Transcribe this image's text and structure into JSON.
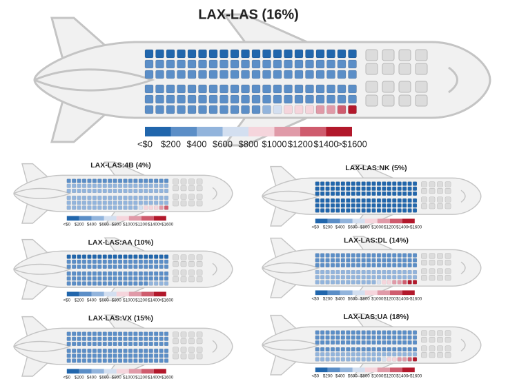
{
  "chart_data": {
    "type": "seatmap",
    "legend": {
      "colors": [
        "#2166ac",
        "#5b8ec7",
        "#92b4dc",
        "#d3dff0",
        "#f5d5dc",
        "#e09aa8",
        "#cf5c6e",
        "#b2182b"
      ],
      "ticks": [
        {
          "value": 0,
          "label": "<$0"
        },
        {
          "value": 200,
          "label": "$200"
        },
        {
          "value": 400,
          "label": "$400"
        },
        {
          "value": 600,
          "label": "$600"
        },
        {
          "value": 800,
          "label": "$800"
        },
        {
          "value": 1000,
          "label": "$1000"
        },
        {
          "value": 1200,
          "label": "$1200"
        },
        {
          "value": 1400,
          "label": "$1400"
        },
        {
          "value": 1600,
          "label": ">$1600"
        }
      ]
    },
    "planes": [
      {
        "title": "LAX-LAS (16%)",
        "seats": [
          [
            150,
            150,
            150,
            150,
            150,
            150,
            150,
            150,
            150,
            150,
            150,
            150,
            150,
            150,
            150,
            150,
            150,
            150,
            150,
            150
          ],
          [
            250,
            250,
            250,
            250,
            250,
            250,
            250,
            250,
            250,
            250,
            250,
            250,
            250,
            250,
            250,
            250,
            250,
            250,
            250,
            250
          ],
          [
            250,
            250,
            250,
            250,
            250,
            250,
            250,
            250,
            250,
            250,
            250,
            250,
            250,
            250,
            250,
            250,
            250,
            250,
            250,
            250
          ],
          [
            300,
            300,
            300,
            300,
            300,
            300,
            300,
            300,
            300,
            300,
            300,
            300,
            300,
            300,
            300,
            300,
            300,
            300,
            300,
            300
          ],
          [
            350,
            350,
            350,
            350,
            350,
            350,
            350,
            350,
            350,
            350,
            350,
            350,
            350,
            350,
            350,
            350,
            350,
            350,
            350,
            350
          ],
          [
            350,
            350,
            350,
            350,
            350,
            350,
            350,
            350,
            350,
            350,
            350,
            450,
            650,
            850,
            850,
            950,
            1050,
            1150,
            1300,
            1700
          ]
        ]
      },
      {
        "title": "LAX-LAS:4B (4%)",
        "seats": [
          [
            350,
            350,
            350,
            350,
            350,
            350,
            350,
            350,
            350,
            350,
            350,
            350,
            350,
            350,
            350,
            350,
            350,
            350,
            350,
            350
          ],
          [
            450,
            450,
            450,
            450,
            450,
            450,
            450,
            450,
            450,
            450,
            450,
            450,
            450,
            450,
            450,
            450,
            450,
            450,
            450,
            450
          ],
          [
            450,
            450,
            450,
            450,
            450,
            450,
            450,
            450,
            450,
            450,
            450,
            450,
            450,
            450,
            450,
            450,
            450,
            450,
            450,
            450
          ],
          [
            450,
            450,
            450,
            450,
            450,
            450,
            450,
            450,
            450,
            450,
            450,
            450,
            450,
            450,
            450,
            450,
            450,
            450,
            450,
            450
          ],
          [
            450,
            450,
            450,
            450,
            450,
            450,
            450,
            450,
            450,
            450,
            450,
            450,
            450,
            450,
            450,
            450,
            450,
            450,
            450,
            450
          ],
          [
            450,
            450,
            450,
            450,
            450,
            450,
            450,
            450,
            450,
            450,
            450,
            450,
            450,
            450,
            650,
            850,
            850,
            900,
            1000,
            1250
          ]
        ]
      },
      {
        "title": "LAX-LAS:NK (5%)",
        "seats": [
          [
            150,
            150,
            150,
            150,
            150,
            150,
            150,
            150,
            150,
            150,
            150,
            150,
            150,
            150,
            150,
            150,
            150,
            150,
            150,
            150
          ],
          [
            150,
            150,
            150,
            150,
            150,
            150,
            150,
            150,
            150,
            150,
            150,
            150,
            150,
            150,
            150,
            150,
            150,
            150,
            150,
            150
          ],
          [
            150,
            150,
            150,
            150,
            150,
            150,
            150,
            150,
            150,
            150,
            150,
            150,
            150,
            150,
            150,
            150,
            150,
            150,
            150,
            150
          ],
          [
            150,
            150,
            150,
            150,
            150,
            150,
            150,
            150,
            150,
            150,
            150,
            150,
            150,
            150,
            150,
            150,
            150,
            150,
            150,
            150
          ],
          [
            150,
            150,
            150,
            150,
            150,
            150,
            150,
            150,
            150,
            150,
            150,
            150,
            150,
            150,
            150,
            150,
            150,
            150,
            150,
            150
          ],
          [
            150,
            150,
            150,
            150,
            150,
            150,
            150,
            150,
            150,
            150,
            150,
            150,
            150,
            150,
            150,
            150,
            150,
            150,
            150,
            150
          ]
        ]
      },
      {
        "title": "LAX-LAS:AA (10%)",
        "seats": [
          [
            150,
            150,
            150,
            150,
            150,
            150,
            150,
            150,
            150,
            150,
            150,
            150,
            150,
            150,
            150,
            150,
            150,
            150,
            150,
            150
          ],
          [
            250,
            250,
            250,
            250,
            250,
            250,
            250,
            250,
            250,
            250,
            250,
            250,
            250,
            250,
            250,
            250,
            250,
            250,
            250,
            250
          ],
          [
            250,
            250,
            250,
            250,
            250,
            250,
            250,
            250,
            250,
            250,
            250,
            250,
            250,
            250,
            250,
            250,
            250,
            250,
            250,
            250
          ],
          [
            250,
            250,
            250,
            250,
            250,
            250,
            250,
            250,
            250,
            250,
            250,
            250,
            250,
            250,
            250,
            250,
            250,
            250,
            250,
            250
          ],
          [
            250,
            250,
            250,
            250,
            250,
            250,
            250,
            250,
            250,
            250,
            250,
            250,
            250,
            250,
            250,
            250,
            250,
            250,
            250,
            250
          ],
          [
            250,
            250,
            250,
            250,
            250,
            250,
            250,
            250,
            250,
            250,
            250,
            250,
            250,
            250,
            250,
            250,
            450,
            450,
            450,
            450
          ]
        ]
      },
      {
        "title": "LAX-LAS:DL (14%)",
        "seats": [
          [
            250,
            250,
            250,
            250,
            250,
            250,
            250,
            250,
            250,
            250,
            250,
            250,
            250,
            250,
            250,
            250,
            250,
            250,
            250,
            250
          ],
          [
            250,
            250,
            250,
            250,
            250,
            250,
            250,
            250,
            250,
            250,
            250,
            250,
            250,
            250,
            250,
            250,
            250,
            250,
            250,
            250
          ],
          [
            300,
            300,
            300,
            300,
            300,
            300,
            300,
            300,
            300,
            300,
            300,
            300,
            300,
            300,
            300,
            300,
            300,
            300,
            300,
            300
          ],
          [
            450,
            450,
            450,
            450,
            450,
            450,
            450,
            450,
            450,
            450,
            450,
            450,
            450,
            450,
            450,
            450,
            450,
            450,
            450,
            450
          ],
          [
            450,
            450,
            450,
            450,
            450,
            450,
            450,
            450,
            450,
            450,
            450,
            450,
            450,
            450,
            450,
            450,
            450,
            450,
            450,
            450
          ],
          [
            450,
            450,
            450,
            450,
            450,
            450,
            450,
            450,
            450,
            450,
            450,
            450,
            650,
            850,
            900,
            1000,
            1100,
            1250,
            1450,
            1700
          ]
        ]
      },
      {
        "title": "LAX-LAS:VX (15%)",
        "seats": [
          [
            250,
            250,
            250,
            250,
            250,
            250,
            250,
            250,
            250,
            250,
            250,
            250,
            250,
            250,
            250,
            250,
            250,
            250,
            250,
            250
          ],
          [
            300,
            300,
            300,
            300,
            300,
            300,
            300,
            300,
            300,
            300,
            300,
            300,
            300,
            300,
            300,
            300,
            300,
            300,
            300,
            300
          ],
          [
            300,
            300,
            300,
            300,
            300,
            300,
            300,
            300,
            300,
            300,
            300,
            300,
            300,
            300,
            300,
            300,
            300,
            300,
            300,
            300
          ],
          [
            300,
            300,
            300,
            300,
            300,
            300,
            300,
            300,
            300,
            300,
            300,
            300,
            300,
            300,
            300,
            300,
            300,
            300,
            300,
            300
          ],
          [
            300,
            300,
            300,
            300,
            300,
            300,
            300,
            300,
            300,
            300,
            300,
            300,
            300,
            300,
            300,
            300,
            300,
            300,
            300,
            300
          ],
          [
            300,
            300,
            300,
            300,
            300,
            300,
            300,
            300,
            300,
            300,
            300,
            300,
            300,
            300,
            300,
            300,
            300,
            300,
            300,
            300
          ]
        ]
      },
      {
        "title": "LAX-LAS:UA (18%)",
        "seats": [
          [
            250,
            250,
            250,
            250,
            250,
            250,
            250,
            250,
            250,
            250,
            250,
            250,
            250,
            250,
            250,
            250,
            250,
            250,
            250,
            250
          ],
          [
            300,
            300,
            300,
            300,
            300,
            300,
            300,
            300,
            300,
            300,
            300,
            300,
            300,
            300,
            300,
            300,
            300,
            300,
            300,
            300
          ],
          [
            300,
            300,
            300,
            300,
            300,
            300,
            300,
            300,
            300,
            300,
            300,
            300,
            300,
            300,
            300,
            300,
            300,
            300,
            300,
            300
          ],
          [
            350,
            350,
            350,
            350,
            350,
            350,
            350,
            350,
            350,
            350,
            350,
            350,
            350,
            350,
            350,
            350,
            350,
            350,
            350,
            350
          ],
          [
            450,
            450,
            450,
            450,
            450,
            450,
            450,
            450,
            450,
            450,
            450,
            450,
            450,
            450,
            450,
            450,
            450,
            450,
            450,
            450
          ],
          [
            450,
            450,
            450,
            450,
            450,
            450,
            450,
            450,
            450,
            450,
            450,
            450,
            450,
            650,
            850,
            900,
            1000,
            1150,
            1300,
            1500
          ]
        ]
      }
    ]
  }
}
